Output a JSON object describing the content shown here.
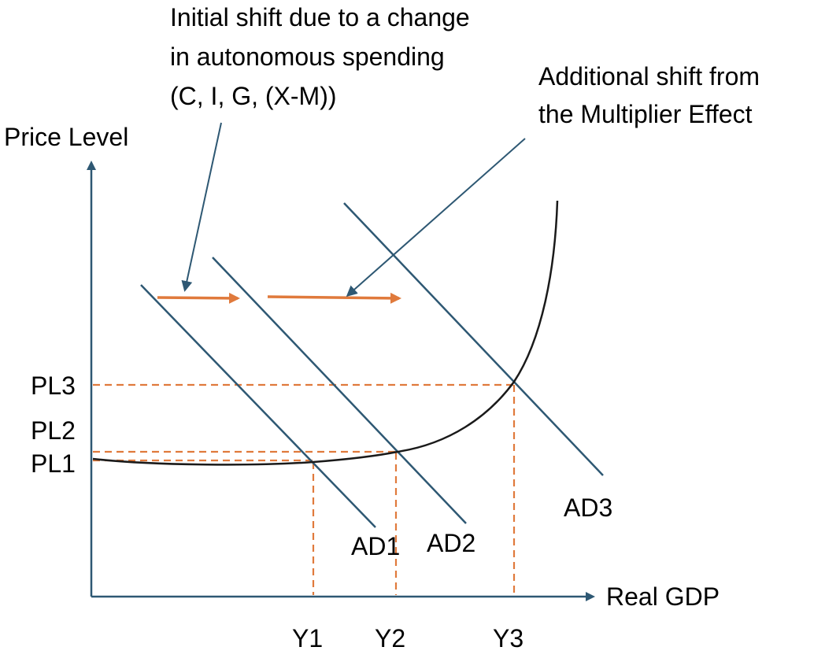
{
  "axes": {
    "y_label": "Price Level",
    "x_label": "Real GDP"
  },
  "price_levels": [
    "PL3",
    "PL2",
    "PL1"
  ],
  "outputs": [
    "Y1",
    "Y2",
    "Y3"
  ],
  "curves": [
    "AD1",
    "AD2",
    "AD3"
  ],
  "annotations": {
    "initial_shift": [
      "Initial shift due to a change",
      "in autonomous spending",
      "(C, I, G, (X-M))"
    ],
    "multiplier_shift": [
      "Additional shift from",
      "the Multiplier Effect"
    ]
  },
  "colors": {
    "axis": "#2e5873",
    "guide": "#e07a3c",
    "curve": "#1a1a1a"
  }
}
